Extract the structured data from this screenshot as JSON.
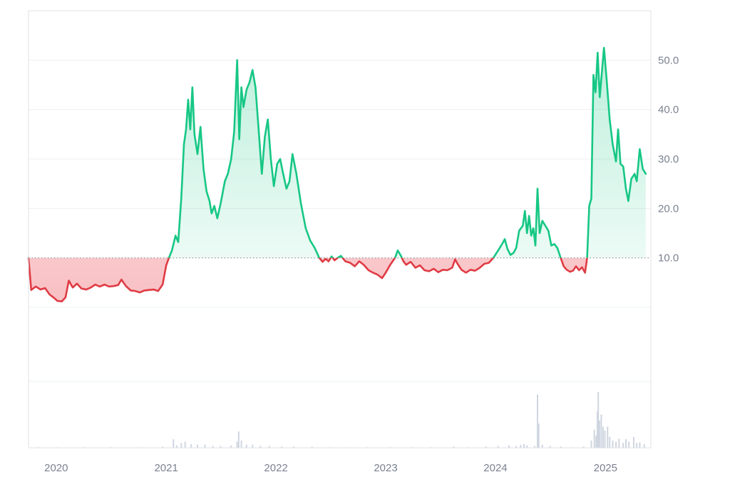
{
  "chart_data": {
    "type": "area",
    "baseline": 10.0,
    "colors": {
      "up_line": "#16c784",
      "down_line": "#e03b44",
      "up_fill": "#16c784",
      "down_fill": "#ea3943",
      "grid": "#eef0f3",
      "frame": "#dde1e6",
      "baseline_dots": "#8a8f98",
      "volume": "#cfd6e0",
      "tick_text": "#7a8190"
    },
    "y_axis": {
      "position": "right",
      "ticks": [
        10,
        20,
        30,
        40,
        50
      ],
      "tick_labels": [
        "10.0",
        "20.0",
        "30.0",
        "40.0",
        "50.0"
      ],
      "range": [
        -15,
        60
      ]
    },
    "x_axis": {
      "range": [
        "2019-10-01",
        "2025-06-01"
      ],
      "tick_labels": [
        "2020",
        "2021",
        "2022",
        "2023",
        "2024",
        "2025"
      ],
      "ticks": [
        "2020-01-01",
        "2021-01-01",
        "2022-01-01",
        "2023-01-01",
        "2024-01-01",
        "2025-01-01"
      ]
    },
    "grid": true,
    "series": [
      {
        "points": [
          [
            "2019-10-01",
            10.0
          ],
          [
            "2019-10-10",
            3.5
          ],
          [
            "2019-10-25",
            4.2
          ],
          [
            "2019-11-10",
            3.6
          ],
          [
            "2019-11-25",
            3.9
          ],
          [
            "2019-12-10",
            2.6
          ],
          [
            "2019-12-25",
            1.9
          ],
          [
            "2020-01-05",
            1.3
          ],
          [
            "2020-01-20",
            1.2
          ],
          [
            "2020-02-01",
            2.0
          ],
          [
            "2020-02-12",
            5.4
          ],
          [
            "2020-02-25",
            4.0
          ],
          [
            "2020-03-10",
            4.8
          ],
          [
            "2020-03-25",
            3.8
          ],
          [
            "2020-04-10",
            3.6
          ],
          [
            "2020-04-25",
            4.0
          ],
          [
            "2020-05-10",
            4.6
          ],
          [
            "2020-05-25",
            4.2
          ],
          [
            "2020-06-10",
            4.6
          ],
          [
            "2020-06-25",
            4.2
          ],
          [
            "2020-07-10",
            4.3
          ],
          [
            "2020-07-25",
            4.5
          ],
          [
            "2020-08-05",
            5.6
          ],
          [
            "2020-08-20",
            4.3
          ],
          [
            "2020-09-05",
            3.4
          ],
          [
            "2020-09-20",
            3.3
          ],
          [
            "2020-10-05",
            3.0
          ],
          [
            "2020-10-20",
            3.4
          ],
          [
            "2020-11-05",
            3.5
          ],
          [
            "2020-11-20",
            3.6
          ],
          [
            "2020-12-05",
            3.3
          ],
          [
            "2020-12-20",
            4.6
          ],
          [
            "2021-01-01",
            8.5
          ],
          [
            "2021-01-10",
            10.0
          ],
          [
            "2021-01-20",
            11.5
          ],
          [
            "2021-02-01",
            14.5
          ],
          [
            "2021-02-10",
            13.2
          ],
          [
            "2021-02-20",
            22.0
          ],
          [
            "2021-03-01",
            33.0
          ],
          [
            "2021-03-08",
            36.0
          ],
          [
            "2021-03-15",
            42.0
          ],
          [
            "2021-03-22",
            36.0
          ],
          [
            "2021-03-29",
            44.5
          ],
          [
            "2021-04-05",
            35.0
          ],
          [
            "2021-04-15",
            31.0
          ],
          [
            "2021-04-25",
            36.5
          ],
          [
            "2021-05-05",
            28.0
          ],
          [
            "2021-05-15",
            23.5
          ],
          [
            "2021-05-25",
            21.5
          ],
          [
            "2021-06-01",
            19.0
          ],
          [
            "2021-06-10",
            20.5
          ],
          [
            "2021-06-20",
            18.0
          ],
          [
            "2021-07-01",
            21.0
          ],
          [
            "2021-07-15",
            25.5
          ],
          [
            "2021-07-25",
            27.0
          ],
          [
            "2021-08-05",
            30.0
          ],
          [
            "2021-08-15",
            35.5
          ],
          [
            "2021-08-25",
            50.0
          ],
          [
            "2021-09-01",
            34.0
          ],
          [
            "2021-09-08",
            44.5
          ],
          [
            "2021-09-15",
            40.5
          ],
          [
            "2021-09-25",
            44.0
          ],
          [
            "2021-10-05",
            45.5
          ],
          [
            "2021-10-15",
            48.0
          ],
          [
            "2021-10-25",
            44.5
          ],
          [
            "2021-11-05",
            35.5
          ],
          [
            "2021-11-15",
            27.0
          ],
          [
            "2021-11-25",
            34.5
          ],
          [
            "2021-12-05",
            38.0
          ],
          [
            "2021-12-15",
            30.0
          ],
          [
            "2021-12-25",
            24.5
          ],
          [
            "2022-01-05",
            29.0
          ],
          [
            "2022-01-15",
            30.0
          ],
          [
            "2022-01-25",
            27.0
          ],
          [
            "2022-02-05",
            24.0
          ],
          [
            "2022-02-15",
            25.5
          ],
          [
            "2022-02-25",
            31.0
          ],
          [
            "2022-03-10",
            27.0
          ],
          [
            "2022-03-25",
            21.0
          ],
          [
            "2022-04-10",
            16.0
          ],
          [
            "2022-04-25",
            13.5
          ],
          [
            "2022-05-10",
            12.0
          ],
          [
            "2022-05-25",
            10.0
          ],
          [
            "2022-06-05",
            9.2
          ],
          [
            "2022-06-15",
            9.8
          ],
          [
            "2022-06-25",
            9.3
          ],
          [
            "2022-07-05",
            10.3
          ],
          [
            "2022-07-15",
            9.5
          ],
          [
            "2022-07-25",
            10.0
          ],
          [
            "2022-08-05",
            10.4
          ],
          [
            "2022-08-20",
            9.3
          ],
          [
            "2022-09-05",
            9.0
          ],
          [
            "2022-09-20",
            8.3
          ],
          [
            "2022-10-05",
            9.3
          ],
          [
            "2022-10-20",
            8.6
          ],
          [
            "2022-11-05",
            7.5
          ],
          [
            "2022-11-20",
            7.0
          ],
          [
            "2022-12-05",
            6.6
          ],
          [
            "2022-12-20",
            5.9
          ],
          [
            "2023-01-01",
            7.0
          ],
          [
            "2023-01-15",
            8.5
          ],
          [
            "2023-02-01",
            10.0
          ],
          [
            "2023-02-10",
            11.5
          ],
          [
            "2023-02-20",
            10.5
          ],
          [
            "2023-03-01",
            9.3
          ],
          [
            "2023-03-10",
            8.6
          ],
          [
            "2023-03-25",
            9.2
          ],
          [
            "2023-04-10",
            8.0
          ],
          [
            "2023-04-25",
            8.5
          ],
          [
            "2023-05-10",
            7.5
          ],
          [
            "2023-05-25",
            7.3
          ],
          [
            "2023-06-10",
            7.8
          ],
          [
            "2023-06-25",
            7.1
          ],
          [
            "2023-07-10",
            7.6
          ],
          [
            "2023-07-25",
            7.5
          ],
          [
            "2023-08-10",
            8.0
          ],
          [
            "2023-08-20",
            9.7
          ],
          [
            "2023-08-28",
            8.8
          ],
          [
            "2023-09-10",
            7.6
          ],
          [
            "2023-09-25",
            7.0
          ],
          [
            "2023-10-10",
            7.6
          ],
          [
            "2023-10-25",
            7.4
          ],
          [
            "2023-11-10",
            8.0
          ],
          [
            "2023-11-25",
            8.8
          ],
          [
            "2023-12-10",
            9.0
          ],
          [
            "2023-12-25",
            10.0
          ],
          [
            "2024-01-10",
            11.5
          ],
          [
            "2024-01-25",
            13.0
          ],
          [
            "2024-02-01",
            13.8
          ],
          [
            "2024-02-10",
            11.8
          ],
          [
            "2024-02-20",
            10.6
          ],
          [
            "2024-03-01",
            11.0
          ],
          [
            "2024-03-10",
            12.0
          ],
          [
            "2024-03-20",
            15.5
          ],
          [
            "2024-04-01",
            16.5
          ],
          [
            "2024-04-08",
            19.5
          ],
          [
            "2024-04-15",
            15.0
          ],
          [
            "2024-04-22",
            18.5
          ],
          [
            "2024-04-29",
            14.5
          ],
          [
            "2024-05-06",
            16.0
          ],
          [
            "2024-05-13",
            12.5
          ],
          [
            "2024-05-20",
            24.0
          ],
          [
            "2024-05-27",
            15.0
          ],
          [
            "2024-06-05",
            17.5
          ],
          [
            "2024-06-15",
            16.5
          ],
          [
            "2024-06-25",
            15.5
          ],
          [
            "2024-07-05",
            12.5
          ],
          [
            "2024-07-15",
            12.8
          ],
          [
            "2024-07-25",
            12.0
          ],
          [
            "2024-08-05",
            10.0
          ],
          [
            "2024-08-15",
            8.3
          ],
          [
            "2024-08-25",
            7.6
          ],
          [
            "2024-09-05",
            7.2
          ],
          [
            "2024-09-15",
            7.4
          ],
          [
            "2024-09-25",
            8.3
          ],
          [
            "2024-10-05",
            7.5
          ],
          [
            "2024-10-15",
            8.1
          ],
          [
            "2024-10-25",
            7.0
          ],
          [
            "2024-11-01",
            10.0
          ],
          [
            "2024-11-08",
            20.5
          ],
          [
            "2024-11-15",
            22.0
          ],
          [
            "2024-11-22",
            47.0
          ],
          [
            "2024-11-29",
            43.5
          ],
          [
            "2024-12-06",
            51.5
          ],
          [
            "2024-12-13",
            42.5
          ],
          [
            "2024-12-20",
            47.5
          ],
          [
            "2024-12-27",
            52.5
          ],
          [
            "2025-01-05",
            46.0
          ],
          [
            "2025-01-15",
            38.0
          ],
          [
            "2025-01-25",
            33.0
          ],
          [
            "2025-02-05",
            29.5
          ],
          [
            "2025-02-12",
            36.0
          ],
          [
            "2025-02-20",
            29.0
          ],
          [
            "2025-03-01",
            28.5
          ],
          [
            "2025-03-10",
            24.0
          ],
          [
            "2025-03-18",
            21.5
          ],
          [
            "2025-03-28",
            26.0
          ],
          [
            "2025-04-08",
            27.0
          ],
          [
            "2025-04-15",
            25.5
          ],
          [
            "2025-04-25",
            32.0
          ],
          [
            "2025-05-05",
            28.0
          ],
          [
            "2025-05-15",
            27.0
          ]
        ]
      }
    ],
    "volume": {
      "range": [
        0,
        100
      ],
      "points": [
        [
          "2019-11-01",
          1
        ],
        [
          "2020-01-01",
          1
        ],
        [
          "2020-04-01",
          1
        ],
        [
          "2020-07-01",
          1
        ],
        [
          "2020-10-01",
          1
        ],
        [
          "2020-12-20",
          2
        ],
        [
          "2021-01-25",
          14
        ],
        [
          "2021-02-05",
          4
        ],
        [
          "2021-02-20",
          8
        ],
        [
          "2021-03-05",
          10
        ],
        [
          "2021-03-25",
          6
        ],
        [
          "2021-04-15",
          5
        ],
        [
          "2021-05-10",
          5
        ],
        [
          "2021-06-05",
          3
        ],
        [
          "2021-07-01",
          3
        ],
        [
          "2021-08-05",
          4
        ],
        [
          "2021-08-25",
          10
        ],
        [
          "2021-08-30",
          27
        ],
        [
          "2021-09-08",
          12
        ],
        [
          "2021-09-25",
          5
        ],
        [
          "2021-10-15",
          5
        ],
        [
          "2021-11-10",
          3
        ],
        [
          "2021-12-10",
          3
        ],
        [
          "2022-01-20",
          2
        ],
        [
          "2022-03-01",
          2
        ],
        [
          "2022-05-01",
          2
        ],
        [
          "2022-07-01",
          1
        ],
        [
          "2022-09-01",
          1
        ],
        [
          "2022-11-01",
          1
        ],
        [
          "2023-01-15",
          1
        ],
        [
          "2023-04-01",
          1
        ],
        [
          "2023-06-01",
          1
        ],
        [
          "2023-08-15",
          2
        ],
        [
          "2023-10-01",
          1
        ],
        [
          "2023-12-01",
          2
        ],
        [
          "2024-01-10",
          3
        ],
        [
          "2024-02-15",
          4
        ],
        [
          "2024-03-10",
          3
        ],
        [
          "2024-03-25",
          5
        ],
        [
          "2024-04-05",
          6
        ],
        [
          "2024-04-15",
          4
        ],
        [
          "2024-05-10",
          3
        ],
        [
          "2024-05-20",
          88
        ],
        [
          "2024-05-24",
          40
        ],
        [
          "2024-06-05",
          5
        ],
        [
          "2024-07-01",
          3
        ],
        [
          "2024-08-05",
          2
        ],
        [
          "2024-09-15",
          1
        ],
        [
          "2024-10-20",
          2
        ],
        [
          "2024-11-15",
          12
        ],
        [
          "2024-11-25",
          30
        ],
        [
          "2024-12-01",
          20
        ],
        [
          "2024-12-05",
          60
        ],
        [
          "2024-12-08",
          92
        ],
        [
          "2024-12-12",
          45
        ],
        [
          "2024-12-18",
          55
        ],
        [
          "2024-12-24",
          35
        ],
        [
          "2024-12-30",
          28
        ],
        [
          "2025-01-08",
          35
        ],
        [
          "2025-01-15",
          18
        ],
        [
          "2025-01-25",
          12
        ],
        [
          "2025-02-05",
          10
        ],
        [
          "2025-02-15",
          15
        ],
        [
          "2025-03-01",
          8
        ],
        [
          "2025-03-10",
          14
        ],
        [
          "2025-03-20",
          10
        ],
        [
          "2025-04-05",
          18
        ],
        [
          "2025-04-15",
          8
        ],
        [
          "2025-04-25",
          9
        ],
        [
          "2025-05-10",
          6
        ]
      ]
    }
  }
}
